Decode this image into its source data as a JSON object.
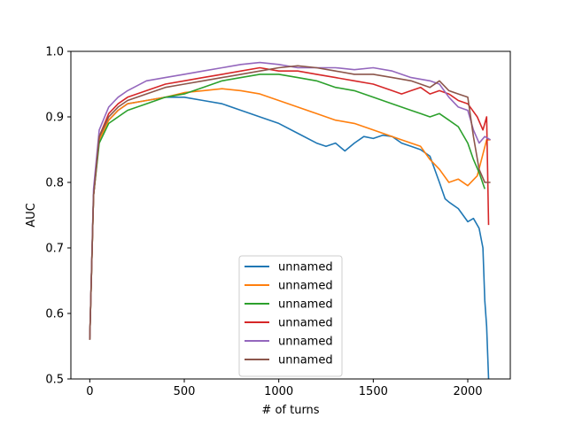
{
  "chart_data": {
    "type": "line",
    "title": "",
    "xlabel": "# of turns",
    "ylabel": "AUC",
    "xlim": [
      -100,
      2225
    ],
    "ylim": [
      0.5,
      1.0
    ],
    "xticks": [
      0,
      500,
      1000,
      1500,
      2000
    ],
    "yticks": [
      0.5,
      0.6,
      0.7,
      0.8,
      0.9,
      1.0
    ],
    "ytick_labels": [
      "0.5",
      "0.6",
      "0.7",
      "0.8",
      "0.9",
      "1.0"
    ],
    "grid": false,
    "legend_position": "lower-center",
    "series": [
      {
        "name": "unnamed",
        "color": "#1f77b4",
        "x": [
          0,
          20,
          50,
          100,
          150,
          200,
          300,
          400,
          500,
          600,
          700,
          800,
          900,
          1000,
          1100,
          1200,
          1250,
          1300,
          1350,
          1400,
          1450,
          1500,
          1550,
          1600,
          1650,
          1700,
          1750,
          1800,
          1850,
          1880,
          1900,
          1950,
          2000,
          2030,
          2060,
          2080,
          2090,
          2100,
          2110
        ],
        "y": [
          0.56,
          0.78,
          0.87,
          0.895,
          0.91,
          0.92,
          0.925,
          0.93,
          0.93,
          0.925,
          0.92,
          0.91,
          0.9,
          0.89,
          0.875,
          0.86,
          0.855,
          0.86,
          0.848,
          0.86,
          0.87,
          0.867,
          0.872,
          0.87,
          0.86,
          0.855,
          0.85,
          0.84,
          0.8,
          0.775,
          0.77,
          0.76,
          0.74,
          0.745,
          0.73,
          0.7,
          0.62,
          0.58,
          0.5
        ]
      },
      {
        "name": "unnamed",
        "color": "#ff7f0e",
        "x": [
          0,
          20,
          50,
          100,
          150,
          200,
          300,
          400,
          500,
          600,
          700,
          800,
          900,
          1000,
          1100,
          1200,
          1300,
          1400,
          1500,
          1600,
          1700,
          1750,
          1800,
          1850,
          1900,
          1950,
          2000,
          2050,
          2100,
          2120
        ],
        "y": [
          0.56,
          0.78,
          0.865,
          0.895,
          0.91,
          0.92,
          0.925,
          0.93,
          0.937,
          0.94,
          0.943,
          0.94,
          0.935,
          0.925,
          0.915,
          0.905,
          0.895,
          0.89,
          0.88,
          0.87,
          0.86,
          0.855,
          0.835,
          0.82,
          0.8,
          0.805,
          0.795,
          0.81,
          0.865,
          0.865
        ]
      },
      {
        "name": "unnamed",
        "color": "#2ca02c",
        "x": [
          0,
          20,
          50,
          100,
          150,
          200,
          300,
          400,
          500,
          600,
          700,
          800,
          900,
          1000,
          1100,
          1200,
          1300,
          1400,
          1500,
          1600,
          1700,
          1750,
          1800,
          1850,
          1900,
          1950,
          2000,
          2030,
          2060,
          2090
        ],
        "y": [
          0.56,
          0.78,
          0.86,
          0.89,
          0.9,
          0.91,
          0.92,
          0.93,
          0.935,
          0.945,
          0.955,
          0.96,
          0.965,
          0.965,
          0.96,
          0.955,
          0.945,
          0.94,
          0.93,
          0.92,
          0.91,
          0.905,
          0.9,
          0.905,
          0.895,
          0.885,
          0.86,
          0.835,
          0.815,
          0.79
        ]
      },
      {
        "name": "unnamed",
        "color": "#d62728",
        "x": [
          0,
          20,
          50,
          100,
          150,
          200,
          300,
          400,
          500,
          600,
          700,
          800,
          900,
          1000,
          1100,
          1200,
          1300,
          1400,
          1500,
          1600,
          1650,
          1700,
          1750,
          1800,
          1850,
          1900,
          1950,
          2000,
          2050,
          2080,
          2100,
          2110
        ],
        "y": [
          0.56,
          0.78,
          0.87,
          0.905,
          0.92,
          0.93,
          0.94,
          0.95,
          0.955,
          0.96,
          0.965,
          0.97,
          0.975,
          0.97,
          0.97,
          0.965,
          0.96,
          0.955,
          0.95,
          0.94,
          0.935,
          0.94,
          0.945,
          0.935,
          0.94,
          0.935,
          0.925,
          0.92,
          0.9,
          0.88,
          0.9,
          0.735
        ]
      },
      {
        "name": "unnamed",
        "color": "#9467bd",
        "x": [
          0,
          20,
          50,
          100,
          150,
          200,
          300,
          400,
          500,
          600,
          700,
          800,
          900,
          1000,
          1100,
          1200,
          1300,
          1400,
          1500,
          1600,
          1700,
          1800,
          1850,
          1900,
          1950,
          2000,
          2030,
          2060,
          2090,
          2120
        ],
        "y": [
          0.56,
          0.79,
          0.88,
          0.915,
          0.93,
          0.94,
          0.955,
          0.96,
          0.965,
          0.97,
          0.975,
          0.98,
          0.983,
          0.98,
          0.975,
          0.975,
          0.975,
          0.972,
          0.975,
          0.97,
          0.96,
          0.955,
          0.95,
          0.93,
          0.915,
          0.91,
          0.88,
          0.86,
          0.87,
          0.865
        ]
      },
      {
        "name": "unnamed",
        "color": "#8c564b",
        "x": [
          0,
          20,
          50,
          100,
          150,
          200,
          300,
          400,
          500,
          600,
          700,
          800,
          900,
          1000,
          1100,
          1200,
          1300,
          1400,
          1500,
          1600,
          1700,
          1750,
          1800,
          1850,
          1900,
          1950,
          2000,
          2030,
          2060,
          2090,
          2120
        ],
        "y": [
          0.56,
          0.78,
          0.87,
          0.9,
          0.915,
          0.925,
          0.935,
          0.945,
          0.95,
          0.955,
          0.96,
          0.965,
          0.97,
          0.975,
          0.978,
          0.975,
          0.97,
          0.965,
          0.965,
          0.96,
          0.955,
          0.95,
          0.945,
          0.955,
          0.94,
          0.935,
          0.93,
          0.87,
          0.82,
          0.8,
          0.8
        ]
      }
    ]
  }
}
